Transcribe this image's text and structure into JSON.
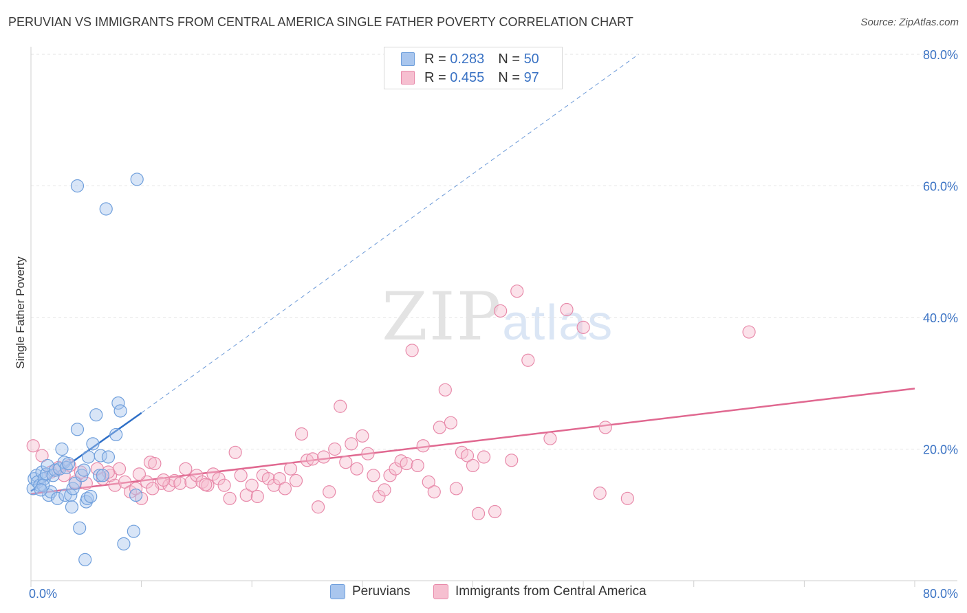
{
  "title": "PERUVIAN VS IMMIGRANTS FROM CENTRAL AMERICA SINGLE FATHER POVERTY CORRELATION CHART",
  "source": "Source: ZipAtlas.com",
  "watermark": {
    "zip": "ZIP",
    "atlas": "atlas"
  },
  "legend_top": {
    "rows": [
      {
        "r_label": "R = ",
        "r_value": "0.283",
        "n_label": "N = ",
        "n_value": "50"
      },
      {
        "r_label": "R = ",
        "r_value": "0.455",
        "n_label": "N = ",
        "n_value": "97"
      }
    ]
  },
  "colors": {
    "blue_fill": "#a9c6ee",
    "blue_stroke": "#6f9fdc",
    "blue_line": "#2e6fc7",
    "pink_fill": "#f6bfd0",
    "pink_stroke": "#e88aaa",
    "pink_line": "#e06890",
    "grid": "#e3e3e3",
    "tick_label": "#3b73c4"
  },
  "chart_data": {
    "type": "scatter",
    "title": "PERUVIAN VS IMMIGRANTS FROM CENTRAL AMERICA SINGLE FATHER POVERTY CORRELATION CHART",
    "xlabel": "",
    "ylabel": "Single Father Poverty",
    "xlim": [
      0,
      80
    ],
    "ylim": [
      0,
      80
    ],
    "x_tick_labels": [
      "0.0%",
      "80.0%"
    ],
    "y_tick_labels": [
      "20.0%",
      "40.0%",
      "60.0%",
      "80.0%"
    ],
    "y_ticks": [
      20,
      40,
      60,
      80
    ],
    "grid": true,
    "legend_position": "bottom",
    "series": [
      {
        "name": "Peruvians",
        "color": "#a9c6ee",
        "R": 0.283,
        "N": 50,
        "trend": {
          "x0": 0,
          "y0": 13.6,
          "x1": 10,
          "y1": 25.5,
          "dashed_to_x": 55,
          "dashed_to_y": 80
        },
        "points": [
          [
            0.2,
            14.0
          ],
          [
            0.3,
            15.5
          ],
          [
            0.5,
            16.0
          ],
          [
            0.6,
            15.0
          ],
          [
            0.8,
            14.5
          ],
          [
            1.0,
            16.5
          ],
          [
            1.2,
            15.5
          ],
          [
            1.4,
            16.2
          ],
          [
            1.5,
            17.5
          ],
          [
            1.6,
            13.0
          ],
          [
            1.8,
            13.5
          ],
          [
            2.0,
            16.0
          ],
          [
            2.2,
            16.8
          ],
          [
            2.4,
            12.5
          ],
          [
            2.6,
            17.0
          ],
          [
            2.8,
            20.0
          ],
          [
            3.0,
            18.0
          ],
          [
            3.1,
            13.0
          ],
          [
            3.2,
            17.2
          ],
          [
            3.4,
            17.8
          ],
          [
            3.6,
            13.0
          ],
          [
            3.7,
            11.2
          ],
          [
            3.8,
            14.0
          ],
          [
            4.0,
            14.8
          ],
          [
            4.2,
            60.0
          ],
          [
            4.2,
            23.0
          ],
          [
            4.4,
            8.0
          ],
          [
            4.6,
            16.0
          ],
          [
            4.8,
            16.8
          ],
          [
            4.9,
            3.2
          ],
          [
            5.0,
            12.0
          ],
          [
            5.1,
            12.5
          ],
          [
            5.2,
            18.8
          ],
          [
            5.4,
            12.8
          ],
          [
            5.6,
            20.8
          ],
          [
            5.9,
            25.2
          ],
          [
            6.2,
            16.0
          ],
          [
            6.3,
            19.0
          ],
          [
            6.5,
            16.0
          ],
          [
            6.8,
            56.5
          ],
          [
            7.0,
            18.8
          ],
          [
            7.7,
            22.2
          ],
          [
            7.9,
            27.0
          ],
          [
            8.1,
            25.8
          ],
          [
            8.4,
            5.6
          ],
          [
            9.3,
            7.5
          ],
          [
            9.5,
            13.0
          ],
          [
            9.6,
            61.0
          ],
          [
            1.1,
            14.5
          ],
          [
            0.9,
            13.8
          ]
        ]
      },
      {
        "name": "Immigrants from Central America",
        "color": "#f6bfd0",
        "R": 0.455,
        "N": 97,
        "trend": {
          "x0": 0,
          "y0": 13.2,
          "x1": 80,
          "y1": 29.2
        },
        "points": [
          [
            0.2,
            20.5
          ],
          [
            1.0,
            19.0
          ],
          [
            1.8,
            16.5
          ],
          [
            3.5,
            17.5
          ],
          [
            4.0,
            15.0
          ],
          [
            4.5,
            16.5
          ],
          [
            5.0,
            14.8
          ],
          [
            6.0,
            17.0
          ],
          [
            6.5,
            15.5
          ],
          [
            7.2,
            16.0
          ],
          [
            7.6,
            14.5
          ],
          [
            8.0,
            17.0
          ],
          [
            8.5,
            15.0
          ],
          [
            9.0,
            13.5
          ],
          [
            9.5,
            14.0
          ],
          [
            10.0,
            12.5
          ],
          [
            10.5,
            15.0
          ],
          [
            10.8,
            18.0
          ],
          [
            11.2,
            17.8
          ],
          [
            11.8,
            14.8
          ],
          [
            12.5,
            14.5
          ],
          [
            13.0,
            15.2
          ],
          [
            13.5,
            14.8
          ],
          [
            14.0,
            17.0
          ],
          [
            14.5,
            15.0
          ],
          [
            15.0,
            16.0
          ],
          [
            15.5,
            15.0
          ],
          [
            16.0,
            14.5
          ],
          [
            16.5,
            16.2
          ],
          [
            17.0,
            15.5
          ],
          [
            17.5,
            14.5
          ],
          [
            18.0,
            12.5
          ],
          [
            18.5,
            19.5
          ],
          [
            19.0,
            16.0
          ],
          [
            19.5,
            13.0
          ],
          [
            20.0,
            14.5
          ],
          [
            20.5,
            12.8
          ],
          [
            21.0,
            16.0
          ],
          [
            21.5,
            15.5
          ],
          [
            22.0,
            14.5
          ],
          [
            22.5,
            15.5
          ],
          [
            23.0,
            14.0
          ],
          [
            23.5,
            17.0
          ],
          [
            24.0,
            15.2
          ],
          [
            24.5,
            22.3
          ],
          [
            25.0,
            18.3
          ],
          [
            25.5,
            18.5
          ],
          [
            26.0,
            11.2
          ],
          [
            26.5,
            18.8
          ],
          [
            27.0,
            13.5
          ],
          [
            27.5,
            20.0
          ],
          [
            28.0,
            26.5
          ],
          [
            28.5,
            18.0
          ],
          [
            29.0,
            20.8
          ],
          [
            29.5,
            17.0
          ],
          [
            30.0,
            22.0
          ],
          [
            30.5,
            19.3
          ],
          [
            31.0,
            16.0
          ],
          [
            31.5,
            12.8
          ],
          [
            32.0,
            13.8
          ],
          [
            32.5,
            16.0
          ],
          [
            33.0,
            17.0
          ],
          [
            33.5,
            18.2
          ],
          [
            34.0,
            17.8
          ],
          [
            34.5,
            35.0
          ],
          [
            35.0,
            17.5
          ],
          [
            35.5,
            20.5
          ],
          [
            36.0,
            15.0
          ],
          [
            36.5,
            13.5
          ],
          [
            37.0,
            23.3
          ],
          [
            37.5,
            29.0
          ],
          [
            38.0,
            24.0
          ],
          [
            38.5,
            14.0
          ],
          [
            39.0,
            19.5
          ],
          [
            39.5,
            19.0
          ],
          [
            40.0,
            17.5
          ],
          [
            40.5,
            10.2
          ],
          [
            41.0,
            18.8
          ],
          [
            42.0,
            10.5
          ],
          [
            42.5,
            41.0
          ],
          [
            43.5,
            18.3
          ],
          [
            44.0,
            44.0
          ],
          [
            45.0,
            33.5
          ],
          [
            47.0,
            21.6
          ],
          [
            48.5,
            41.2
          ],
          [
            50.0,
            38.5
          ],
          [
            51.5,
            13.3
          ],
          [
            52.0,
            23.3
          ],
          [
            54.0,
            12.5
          ],
          [
            65.0,
            37.8
          ],
          [
            3.0,
            16.0
          ],
          [
            2.5,
            17.2
          ],
          [
            7.0,
            16.5
          ],
          [
            12.0,
            15.3
          ],
          [
            15.8,
            14.6
          ],
          [
            11.0,
            14.0
          ],
          [
            9.8,
            16.2
          ]
        ]
      }
    ]
  }
}
